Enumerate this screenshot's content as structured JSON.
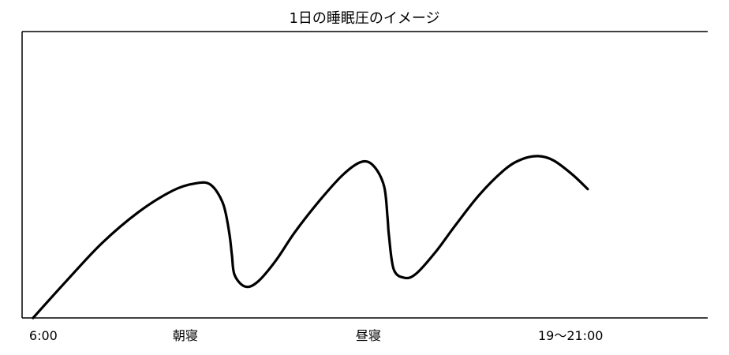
{
  "chart_data": {
    "type": "line",
    "title": "1日の睡眠圧のイメージ",
    "xlabel": "",
    "ylabel": "",
    "grid": false,
    "legend": "none",
    "xlim": [
      0,
      100
    ],
    "ylim": [
      0,
      100
    ],
    "x_tick_labels": [
      {
        "x": 1.6,
        "label": "6:00"
      },
      {
        "x": 23.8,
        "label": "朝寝"
      },
      {
        "x": 50.5,
        "label": "昼寝"
      },
      {
        "x": 80.0,
        "label": "19〜21:00"
      }
    ],
    "series": [
      {
        "color": "#000000",
        "points": [
          [
            1.6,
            0.0
          ],
          [
            6.5,
            13.0
          ],
          [
            11.6,
            26.0
          ],
          [
            17.0,
            37.0
          ],
          [
            22.0,
            44.5
          ],
          [
            25.3,
            47.0
          ],
          [
            27.5,
            46.5
          ],
          [
            29.3,
            40.0
          ],
          [
            30.2,
            30.0
          ],
          [
            30.6,
            22.0
          ],
          [
            31.0,
            15.0
          ],
          [
            32.5,
            11.0
          ],
          [
            34.3,
            12.5
          ],
          [
            37.0,
            20.0
          ],
          [
            39.8,
            30.0
          ],
          [
            43.4,
            41.0
          ],
          [
            46.8,
            50.0
          ],
          [
            49.5,
            54.5
          ],
          [
            51.3,
            53.0
          ],
          [
            52.8,
            46.0
          ],
          [
            53.3,
            35.0
          ],
          [
            53.5,
            29.0
          ],
          [
            54.2,
            17.0
          ],
          [
            55.8,
            14.0
          ],
          [
            57.5,
            15.5
          ],
          [
            60.3,
            23.0
          ],
          [
            63.1,
            32.0
          ],
          [
            66.7,
            43.0
          ],
          [
            70.5,
            52.0
          ],
          [
            73.0,
            55.5
          ],
          [
            75.3,
            56.5
          ],
          [
            77.5,
            55.0
          ],
          [
            80.3,
            50.0
          ],
          [
            82.5,
            45.0
          ]
        ]
      }
    ]
  }
}
